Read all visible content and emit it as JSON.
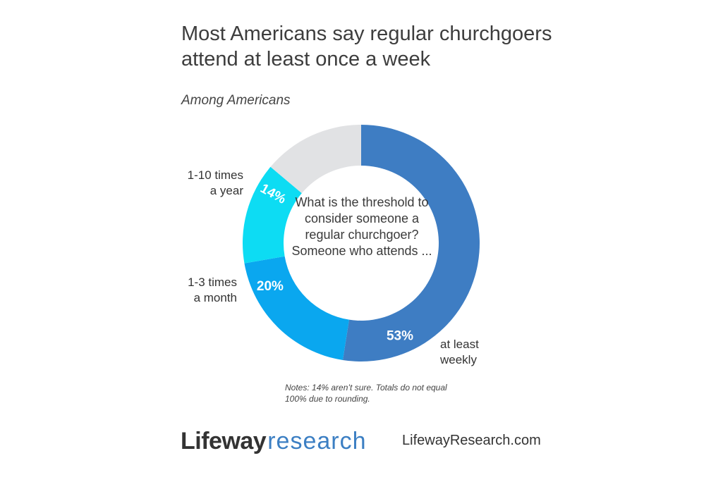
{
  "title": "Most Americans say regular churchgoers attend at least once a week",
  "subtitle": "Among Americans",
  "center_question": "What is the threshold to consider someone a regular churchgoer? Someone who attends ...",
  "notes": "Notes: 14% aren’t sure. Totals do not equal 100% due to rounding.",
  "footer": {
    "brand_bold": "Lifeway",
    "brand_light": "research",
    "website": "LifewayResearch.com"
  },
  "chart_data": {
    "type": "pie",
    "variant": "donut",
    "slices": [
      {
        "name": "at least weekly",
        "label_line1": "at least",
        "label_line2": "weekly",
        "value": 53,
        "value_label": "53%",
        "color": "#3e7dc3"
      },
      {
        "name": "1-3 times a month",
        "label_line1": "1-3 times",
        "label_line2": "a month",
        "value": 20,
        "value_label": "20%",
        "color": "#0aa7ef"
      },
      {
        "name": "1-10 times a year",
        "label_line1": "1-10 times",
        "label_line2": "a year",
        "value": 14,
        "value_label": "14%",
        "color": "#0ddcf3"
      },
      {
        "name": "not sure",
        "value": 14,
        "value_label": "",
        "color": "#e1e2e4"
      }
    ]
  }
}
